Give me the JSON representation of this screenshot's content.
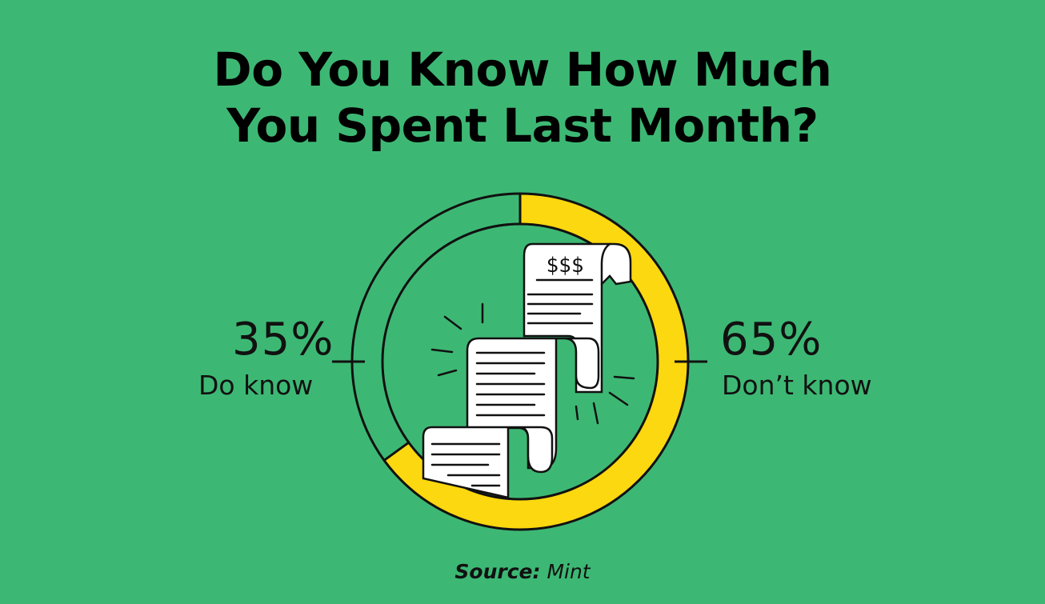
{
  "title": {
    "line1": "Do You Know How Much",
    "line2": "You Spent Last Month?"
  },
  "source": {
    "label": "Source:",
    "value": "Mint"
  },
  "chart_data": {
    "type": "pie",
    "style": "donut",
    "categories": [
      "Do know",
      "Don’t know"
    ],
    "values": [
      35,
      65
    ],
    "value_labels": [
      "35%",
      "65%"
    ],
    "colors": [
      "#3db874",
      "#fbd80f"
    ],
    "center_icon": "receipt-icon"
  },
  "colors": {
    "background": "#3db874",
    "accent": "#fbd80f",
    "ink": "#111111",
    "paper": "#ffffff"
  }
}
